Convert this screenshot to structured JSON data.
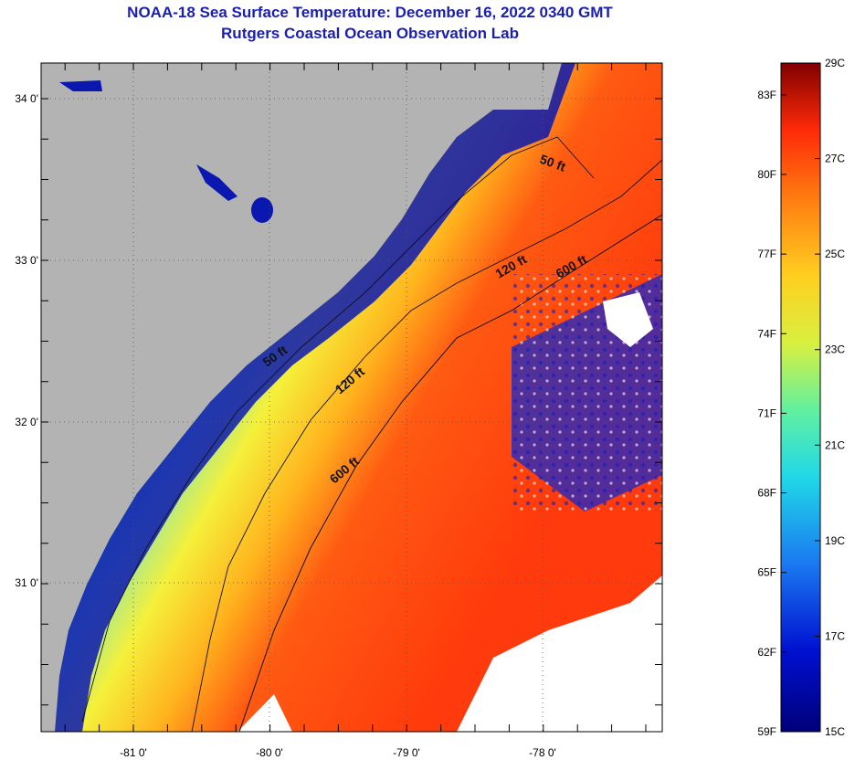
{
  "header": {
    "title": "NOAA-18 Sea Surface Temperature:  December 16, 2022 0340 GMT",
    "subtitle": "Rutgers Coastal Ocean Observation Lab"
  },
  "map": {
    "lat_ticks": [
      "34 0'",
      "33 0'",
      "32 0'",
      "31 0'"
    ],
    "lon_ticks": [
      "-81 0'",
      "-80 0'",
      "-79 0'",
      "-78 0'"
    ],
    "contours": {
      "c50_label": "50 ft",
      "c120_label": "120 ft",
      "c600_label": "600 ft"
    },
    "colors": {
      "land": "#b3b3b3",
      "coast_water": "#0a1aa8",
      "warm": "#ff4a10"
    }
  },
  "colorbar": {
    "fahrenheit": [
      "83F",
      "80F",
      "77F",
      "74F",
      "71F",
      "68F",
      "65F",
      "62F",
      "59F"
    ],
    "celsius": [
      "29C",
      "27C",
      "25C",
      "23C",
      "21C",
      "19C",
      "17C",
      "15C"
    ],
    "min_f": 59,
    "max_f": 84.2,
    "min_c": 15,
    "max_c": 29
  }
}
